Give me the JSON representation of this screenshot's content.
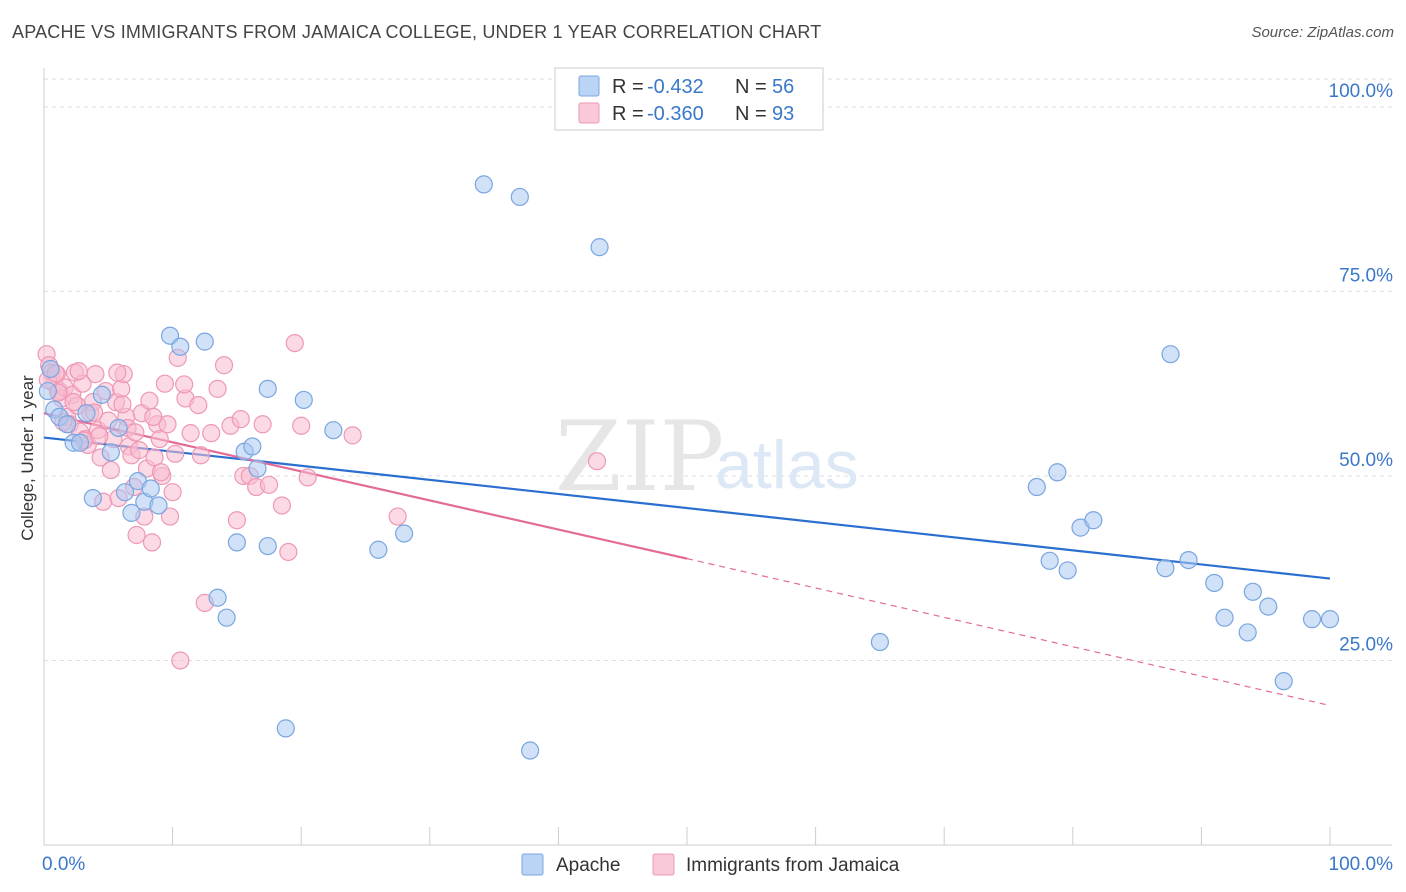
{
  "title": "APACHE VS IMMIGRANTS FROM JAMAICA COLLEGE, UNDER 1 YEAR CORRELATION CHART",
  "source": "Source: ZipAtlas.com",
  "watermark": {
    "zip": "ZIP",
    "atlas": "atlas"
  },
  "colors": {
    "apache_fill": "#a9c9f2",
    "apache_stroke": "#7aa6df",
    "apache_line": "#2a6fcf",
    "jamaica_fill": "#f7bcd0",
    "jamaica_stroke": "#ee98b6",
    "jamaica_line": "#e26b97",
    "grid": "#dddddd",
    "axis_text": "#3a78c9"
  },
  "legend": {
    "rows": [
      {
        "r_label": "R =",
        "r_value": "-0.432",
        "n_label": "N =",
        "n_value": "56"
      },
      {
        "r_label": "R =",
        "r_value": "-0.360",
        "n_label": "N =",
        "n_value": "93"
      }
    ]
  },
  "bottom_legend": [
    "Apache",
    "Immigrants from Jamaica"
  ],
  "chart_data": {
    "type": "scatter",
    "title": "APACHE VS IMMIGRANTS FROM JAMAICA COLLEGE, UNDER 1 YEAR CORRELATION CHART",
    "xlabel": "",
    "ylabel": "College, Under 1 year",
    "xlim": [
      0,
      100
    ],
    "ylim": [
      0,
      105
    ],
    "x_tick_labels": [
      "0.0%",
      "100.0%"
    ],
    "y_ticks": [
      25,
      50,
      75,
      100
    ],
    "y_tick_labels": [
      "25.0%",
      "50.0%",
      "75.0%",
      "100.0%"
    ],
    "grid": true,
    "legend_position": "top-center",
    "series": [
      {
        "name": "Apache",
        "r": -0.432,
        "n": 56,
        "trend": {
          "x0": 0,
          "y0": 55.2,
          "x1": 100,
          "y1": 36.1
        },
        "points": [
          [
            0.5,
            64.5
          ],
          [
            0.8,
            59.0
          ],
          [
            1.2,
            58.0
          ],
          [
            1.8,
            57.0
          ],
          [
            2.3,
            54.5
          ],
          [
            2.8,
            54.5
          ],
          [
            3.3,
            58.5
          ],
          [
            3.8,
            47.0
          ],
          [
            4.5,
            61.0
          ],
          [
            5.2,
            53.2
          ],
          [
            5.8,
            56.5
          ],
          [
            6.3,
            47.8
          ],
          [
            6.8,
            45.0
          ],
          [
            7.3,
            49.3
          ],
          [
            7.8,
            46.5
          ],
          [
            8.3,
            48.3
          ],
          [
            8.9,
            46.0
          ],
          [
            9.8,
            69.0
          ],
          [
            10.6,
            67.5
          ],
          [
            12.5,
            68.2
          ],
          [
            13.5,
            33.5
          ],
          [
            14.2,
            30.8
          ],
          [
            15.0,
            41.0
          ],
          [
            15.6,
            53.3
          ],
          [
            16.2,
            54.0
          ],
          [
            16.6,
            51.0
          ],
          [
            17.4,
            61.8
          ],
          [
            17.4,
            40.5
          ],
          [
            18.8,
            15.8
          ],
          [
            20.2,
            60.3
          ],
          [
            22.5,
            56.2
          ],
          [
            26.0,
            40.0
          ],
          [
            28.0,
            42.2
          ],
          [
            34.2,
            89.5
          ],
          [
            37.0,
            87.8
          ],
          [
            37.8,
            12.8
          ],
          [
            43.2,
            81.0
          ],
          [
            65.0,
            27.5
          ],
          [
            77.2,
            48.5
          ],
          [
            78.2,
            38.5
          ],
          [
            78.8,
            50.5
          ],
          [
            79.6,
            37.2
          ],
          [
            80.6,
            43.0
          ],
          [
            81.6,
            44.0
          ],
          [
            87.2,
            37.5
          ],
          [
            87.6,
            66.5
          ],
          [
            89.0,
            38.6
          ],
          [
            91.0,
            35.5
          ],
          [
            91.8,
            30.8
          ],
          [
            93.6,
            28.8
          ],
          [
            94.0,
            34.3
          ],
          [
            95.2,
            32.3
          ],
          [
            96.4,
            22.2
          ],
          [
            98.6,
            30.6
          ],
          [
            100.0,
            30.6
          ],
          [
            0.3,
            61.5
          ]
        ]
      },
      {
        "name": "Immigrants from Jamaica",
        "r": -0.36,
        "n": 93,
        "trend": {
          "x0": 0,
          "y0": 58.5,
          "x1": 50,
          "y1": 38.8
        },
        "trend_dashed": {
          "x0": 50,
          "y0": 38.8,
          "x1": 100,
          "y1": 18.9
        },
        "points": [
          [
            0.2,
            66.5
          ],
          [
            0.4,
            65.0
          ],
          [
            0.6,
            64.0
          ],
          [
            0.8,
            62.5
          ],
          [
            1.0,
            63.8
          ],
          [
            1.2,
            61.5
          ],
          [
            1.4,
            60.5
          ],
          [
            1.6,
            62.0
          ],
          [
            1.8,
            58.0
          ],
          [
            2.0,
            57.0
          ],
          [
            2.2,
            61.0
          ],
          [
            2.4,
            64.0
          ],
          [
            2.6,
            59.5
          ],
          [
            2.8,
            56.0
          ],
          [
            3.0,
            62.5
          ],
          [
            3.2,
            55.0
          ],
          [
            3.4,
            54.2
          ],
          [
            3.6,
            58.5
          ],
          [
            3.8,
            60.0
          ],
          [
            4.0,
            63.8
          ],
          [
            4.2,
            56.2
          ],
          [
            4.4,
            52.5
          ],
          [
            4.6,
            46.5
          ],
          [
            4.8,
            61.5
          ],
          [
            5.0,
            57.5
          ],
          [
            5.2,
            50.8
          ],
          [
            5.4,
            55.0
          ],
          [
            5.6,
            60.0
          ],
          [
            5.8,
            47.0
          ],
          [
            6.0,
            61.8
          ],
          [
            6.2,
            63.8
          ],
          [
            6.4,
            58.0
          ],
          [
            6.6,
            54.0
          ],
          [
            6.8,
            52.8
          ],
          [
            7.0,
            48.5
          ],
          [
            7.2,
            42.0
          ],
          [
            7.4,
            53.5
          ],
          [
            7.6,
            58.5
          ],
          [
            7.8,
            44.5
          ],
          [
            8.0,
            51.0
          ],
          [
            8.2,
            60.2
          ],
          [
            8.4,
            41.0
          ],
          [
            8.6,
            52.5
          ],
          [
            8.8,
            57.0
          ],
          [
            9.0,
            55.0
          ],
          [
            9.2,
            50.0
          ],
          [
            9.4,
            62.5
          ],
          [
            9.6,
            57.0
          ],
          [
            9.8,
            44.5
          ],
          [
            10.0,
            47.8
          ],
          [
            10.2,
            53.0
          ],
          [
            10.4,
            66.0
          ],
          [
            10.6,
            25.0
          ],
          [
            11.0,
            60.5
          ],
          [
            11.4,
            55.8
          ],
          [
            12.0,
            59.6
          ],
          [
            12.5,
            32.8
          ],
          [
            13.0,
            55.8
          ],
          [
            13.5,
            61.8
          ],
          [
            14.0,
            65.0
          ],
          [
            14.5,
            56.8
          ],
          [
            15.0,
            44.0
          ],
          [
            15.5,
            50.0
          ],
          [
            16.0,
            50.0
          ],
          [
            16.5,
            48.5
          ],
          [
            17.0,
            57.0
          ],
          [
            17.5,
            48.8
          ],
          [
            18.5,
            46.0
          ],
          [
            19.0,
            39.7
          ],
          [
            19.5,
            68.0
          ],
          [
            20.0,
            56.8
          ],
          [
            20.5,
            49.8
          ],
          [
            24.0,
            55.5
          ],
          [
            27.5,
            44.5
          ],
          [
            43.0,
            52.0
          ],
          [
            0.3,
            63.0
          ],
          [
            1.1,
            61.3
          ],
          [
            2.3,
            60.0
          ],
          [
            3.1,
            54.8
          ],
          [
            3.9,
            58.6
          ],
          [
            5.7,
            64.0
          ],
          [
            6.5,
            56.5
          ],
          [
            8.5,
            58.0
          ],
          [
            1.5,
            57.3
          ],
          [
            12.2,
            52.8
          ],
          [
            9.1,
            50.5
          ],
          [
            4.3,
            55.4
          ],
          [
            2.7,
            64.2
          ],
          [
            6.1,
            59.7
          ],
          [
            10.9,
            62.4
          ],
          [
            15.3,
            57.7
          ],
          [
            0.9,
            63.9
          ],
          [
            7.1,
            55.9
          ]
        ]
      }
    ]
  }
}
